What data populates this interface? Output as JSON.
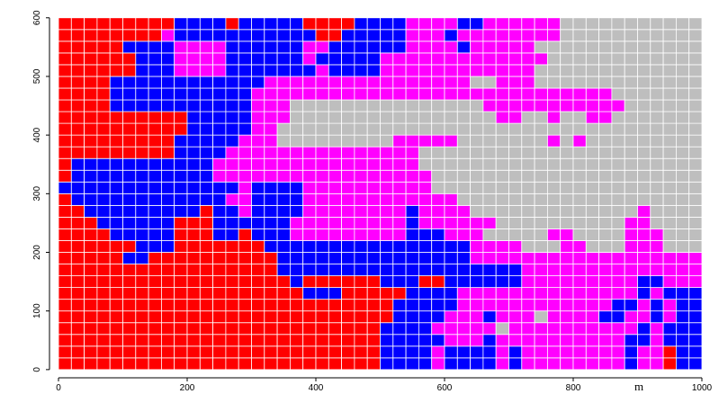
{
  "chart_data": {
    "type": "heatmap",
    "xbins": [
      0,
      20,
      40,
      60,
      80,
      100,
      120,
      140,
      160,
      180,
      200,
      220,
      240,
      260,
      280,
      300,
      320,
      340,
      360,
      380,
      400,
      420,
      440,
      460,
      480,
      500,
      520,
      540,
      560,
      580,
      600,
      620,
      640,
      660,
      680,
      700,
      720,
      740,
      760,
      780,
      800,
      820,
      840,
      860,
      880,
      900,
      920,
      940,
      960,
      980,
      1000
    ],
    "ybins": [
      0,
      20,
      40,
      60,
      80,
      100,
      120,
      140,
      160,
      180,
      200,
      220,
      240,
      260,
      280,
      300,
      320,
      340,
      360,
      380,
      400,
      420,
      440,
      460,
      480,
      500,
      520,
      540,
      560,
      580,
      600
    ],
    "palette": [
      "#ff0000",
      "#0000ff",
      "#ff00ff",
      "#bebebe"
    ],
    "z": [
      [
        0,
        0,
        0,
        0,
        0,
        0,
        0,
        0,
        0,
        0,
        0,
        0,
        0,
        0,
        0,
        0,
        0,
        0,
        0,
        0,
        0,
        0,
        0,
        0,
        0,
        1,
        1,
        1,
        1,
        2,
        1,
        1,
        1,
        1,
        2,
        1,
        2,
        2,
        2,
        2,
        2,
        2,
        2,
        2,
        1,
        2,
        2,
        0,
        1,
        1
      ],
      [
        0,
        0,
        0,
        0,
        0,
        0,
        0,
        0,
        0,
        0,
        0,
        0,
        0,
        0,
        0,
        0,
        0,
        0,
        0,
        0,
        0,
        0,
        0,
        0,
        0,
        1,
        1,
        1,
        1,
        2,
        1,
        1,
        1,
        1,
        2,
        1,
        2,
        2,
        2,
        2,
        2,
        2,
        2,
        2,
        1,
        2,
        2,
        0,
        1,
        1
      ],
      [
        0,
        0,
        0,
        0,
        0,
        0,
        0,
        0,
        0,
        0,
        0,
        0,
        0,
        0,
        0,
        0,
        0,
        0,
        0,
        0,
        0,
        0,
        0,
        0,
        0,
        1,
        1,
        1,
        1,
        1,
        2,
        2,
        2,
        1,
        2,
        2,
        2,
        2,
        2,
        2,
        2,
        2,
        2,
        2,
        1,
        1,
        2,
        1,
        1,
        1
      ],
      [
        0,
        0,
        0,
        0,
        0,
        0,
        0,
        0,
        0,
        0,
        0,
        0,
        0,
        0,
        0,
        0,
        0,
        0,
        0,
        0,
        0,
        0,
        0,
        0,
        0,
        1,
        1,
        1,
        1,
        2,
        2,
        2,
        2,
        2,
        3,
        2,
        2,
        2,
        2,
        2,
        2,
        2,
        2,
        2,
        2,
        1,
        2,
        1,
        1,
        1
      ],
      [
        0,
        0,
        0,
        0,
        0,
        0,
        0,
        0,
        0,
        0,
        0,
        0,
        0,
        0,
        0,
        0,
        0,
        0,
        0,
        0,
        0,
        0,
        0,
        0,
        0,
        0,
        1,
        1,
        1,
        1,
        2,
        2,
        2,
        1,
        2,
        2,
        2,
        3,
        2,
        2,
        2,
        2,
        1,
        1,
        2,
        2,
        1,
        2,
        1,
        1
      ],
      [
        0,
        0,
        0,
        0,
        0,
        0,
        0,
        0,
        0,
        0,
        0,
        0,
        0,
        0,
        0,
        0,
        0,
        0,
        0,
        0,
        0,
        0,
        0,
        0,
        0,
        0,
        1,
        1,
        1,
        1,
        1,
        2,
        2,
        2,
        2,
        2,
        2,
        2,
        2,
        2,
        2,
        2,
        2,
        1,
        1,
        2,
        1,
        2,
        1,
        1
      ],
      [
        0,
        0,
        0,
        0,
        0,
        0,
        0,
        0,
        0,
        0,
        0,
        0,
        0,
        0,
        0,
        0,
        0,
        0,
        0,
        1,
        1,
        1,
        0,
        0,
        0,
        0,
        0,
        1,
        1,
        1,
        1,
        2,
        2,
        2,
        2,
        2,
        2,
        2,
        2,
        2,
        2,
        2,
        2,
        2,
        2,
        1,
        2,
        1,
        1,
        1
      ],
      [
        0,
        0,
        0,
        0,
        0,
        0,
        0,
        0,
        0,
        0,
        0,
        0,
        0,
        0,
        0,
        0,
        0,
        0,
        1,
        0,
        0,
        0,
        0,
        0,
        0,
        1,
        1,
        1,
        0,
        0,
        1,
        1,
        1,
        1,
        1,
        1,
        2,
        2,
        2,
        2,
        2,
        2,
        2,
        2,
        2,
        1,
        1,
        2,
        2,
        2
      ],
      [
        0,
        0,
        0,
        0,
        0,
        0,
        0,
        0,
        0,
        0,
        0,
        0,
        0,
        0,
        0,
        0,
        0,
        1,
        1,
        1,
        1,
        1,
        1,
        1,
        1,
        1,
        1,
        1,
        1,
        1,
        1,
        1,
        1,
        1,
        1,
        1,
        2,
        2,
        2,
        2,
        2,
        2,
        2,
        2,
        2,
        2,
        2,
        2,
        2,
        2
      ],
      [
        0,
        0,
        0,
        0,
        0,
        1,
        1,
        0,
        0,
        0,
        0,
        0,
        0,
        0,
        0,
        0,
        0,
        1,
        1,
        1,
        1,
        1,
        1,
        1,
        1,
        1,
        1,
        1,
        1,
        1,
        1,
        1,
        2,
        2,
        2,
        2,
        2,
        2,
        2,
        2,
        2,
        2,
        2,
        2,
        2,
        2,
        2,
        2,
        2,
        2
      ],
      [
        0,
        0,
        0,
        0,
        0,
        0,
        1,
        1,
        1,
        0,
        0,
        0,
        0,
        0,
        0,
        0,
        1,
        1,
        1,
        1,
        1,
        1,
        1,
        1,
        1,
        1,
        1,
        1,
        1,
        1,
        1,
        1,
        2,
        2,
        2,
        2,
        3,
        3,
        3,
        2,
        2,
        3,
        3,
        3,
        2,
        2,
        2,
        3,
        3,
        3
      ],
      [
        0,
        0,
        0,
        0,
        1,
        1,
        1,
        1,
        1,
        0,
        0,
        0,
        1,
        1,
        0,
        1,
        1,
        1,
        2,
        2,
        2,
        2,
        2,
        2,
        2,
        2,
        2,
        1,
        1,
        1,
        2,
        2,
        2,
        3,
        3,
        3,
        3,
        3,
        2,
        2,
        3,
        3,
        3,
        3,
        2,
        2,
        2,
        3,
        3,
        3
      ],
      [
        0,
        0,
        0,
        1,
        1,
        1,
        1,
        1,
        1,
        0,
        0,
        0,
        1,
        1,
        1,
        1,
        1,
        1,
        2,
        2,
        2,
        2,
        2,
        2,
        2,
        2,
        2,
        1,
        2,
        2,
        2,
        2,
        2,
        2,
        3,
        3,
        3,
        3,
        3,
        3,
        3,
        3,
        3,
        3,
        2,
        2,
        3,
        3,
        3,
        3
      ],
      [
        0,
        0,
        1,
        1,
        1,
        1,
        1,
        1,
        1,
        1,
        1,
        0,
        1,
        1,
        2,
        1,
        1,
        1,
        1,
        2,
        2,
        2,
        2,
        2,
        2,
        2,
        2,
        1,
        2,
        2,
        2,
        2,
        3,
        3,
        3,
        3,
        3,
        3,
        3,
        3,
        3,
        3,
        3,
        3,
        3,
        2,
        3,
        3,
        3,
        3
      ],
      [
        0,
        1,
        1,
        1,
        1,
        1,
        1,
        1,
        1,
        1,
        1,
        1,
        1,
        2,
        2,
        1,
        1,
        1,
        1,
        2,
        2,
        2,
        2,
        2,
        2,
        2,
        2,
        2,
        2,
        2,
        2,
        3,
        3,
        3,
        3,
        3,
        3,
        3,
        3,
        3,
        3,
        3,
        3,
        3,
        3,
        3,
        3,
        3,
        3,
        3
      ],
      [
        1,
        1,
        1,
        1,
        1,
        1,
        1,
        1,
        1,
        1,
        1,
        1,
        1,
        1,
        2,
        1,
        1,
        1,
        1,
        2,
        2,
        2,
        2,
        2,
        2,
        2,
        2,
        2,
        2,
        3,
        3,
        3,
        3,
        3,
        3,
        3,
        3,
        3,
        3,
        3,
        3,
        3,
        3,
        3,
        3,
        3,
        3,
        3,
        3,
        3
      ],
      [
        0,
        1,
        1,
        1,
        1,
        1,
        1,
        1,
        1,
        1,
        1,
        1,
        2,
        2,
        2,
        2,
        2,
        2,
        2,
        2,
        2,
        2,
        2,
        2,
        2,
        2,
        2,
        2,
        2,
        3,
        3,
        3,
        3,
        3,
        3,
        3,
        3,
        3,
        3,
        3,
        3,
        3,
        3,
        3,
        3,
        3,
        3,
        3,
        3,
        3
      ],
      [
        0,
        1,
        1,
        1,
        1,
        1,
        1,
        1,
        1,
        1,
        1,
        1,
        2,
        2,
        2,
        2,
        2,
        2,
        2,
        2,
        2,
        2,
        2,
        2,
        2,
        2,
        2,
        2,
        3,
        3,
        3,
        3,
        3,
        3,
        3,
        3,
        3,
        3,
        3,
        3,
        3,
        3,
        3,
        3,
        3,
        3,
        3,
        3,
        3,
        3
      ],
      [
        0,
        0,
        0,
        0,
        0,
        0,
        0,
        0,
        0,
        1,
        1,
        1,
        1,
        2,
        2,
        2,
        2,
        2,
        2,
        2,
        2,
        2,
        2,
        2,
        2,
        2,
        2,
        2,
        3,
        3,
        3,
        3,
        3,
        3,
        3,
        3,
        3,
        3,
        3,
        3,
        3,
        3,
        3,
        3,
        3,
        3,
        3,
        3,
        3,
        3
      ],
      [
        0,
        0,
        0,
        0,
        0,
        0,
        0,
        0,
        0,
        1,
        1,
        1,
        1,
        1,
        2,
        2,
        2,
        3,
        3,
        3,
        3,
        3,
        3,
        3,
        3,
        3,
        2,
        2,
        2,
        2,
        2,
        3,
        3,
        3,
        3,
        3,
        3,
        3,
        2,
        3,
        2,
        3,
        3,
        3,
        3,
        3,
        3,
        3,
        3,
        3
      ],
      [
        0,
        0,
        0,
        0,
        0,
        0,
        0,
        0,
        0,
        0,
        1,
        1,
        1,
        1,
        1,
        2,
        2,
        3,
        3,
        3,
        3,
        3,
        3,
        3,
        3,
        3,
        3,
        3,
        3,
        3,
        3,
        3,
        3,
        3,
        3,
        3,
        3,
        3,
        3,
        3,
        3,
        3,
        3,
        3,
        3,
        3,
        3,
        3,
        3,
        3
      ],
      [
        0,
        0,
        0,
        0,
        0,
        0,
        0,
        0,
        0,
        0,
        1,
        1,
        1,
        1,
        1,
        2,
        2,
        2,
        3,
        3,
        3,
        3,
        3,
        3,
        3,
        3,
        3,
        3,
        3,
        3,
        3,
        3,
        3,
        3,
        2,
        2,
        3,
        3,
        2,
        3,
        3,
        2,
        2,
        3,
        3,
        3,
        3,
        3,
        3,
        3
      ],
      [
        0,
        0,
        0,
        0,
        1,
        1,
        1,
        1,
        1,
        1,
        1,
        1,
        1,
        1,
        1,
        2,
        2,
        2,
        3,
        3,
        3,
        3,
        3,
        3,
        3,
        3,
        3,
        3,
        3,
        3,
        3,
        3,
        3,
        2,
        2,
        2,
        2,
        2,
        2,
        2,
        2,
        2,
        2,
        2,
        3,
        3,
        3,
        3,
        3,
        3
      ],
      [
        0,
        0,
        0,
        0,
        1,
        1,
        1,
        1,
        1,
        1,
        1,
        1,
        1,
        1,
        1,
        2,
        2,
        2,
        2,
        2,
        2,
        2,
        2,
        2,
        2,
        2,
        2,
        2,
        2,
        2,
        2,
        2,
        2,
        2,
        2,
        2,
        2,
        2,
        2,
        2,
        2,
        2,
        2,
        3,
        3,
        3,
        3,
        3,
        3,
        3
      ],
      [
        0,
        0,
        0,
        0,
        1,
        1,
        1,
        1,
        1,
        1,
        1,
        1,
        1,
        1,
        1,
        1,
        2,
        2,
        2,
        2,
        2,
        2,
        2,
        2,
        2,
        2,
        2,
        2,
        2,
        2,
        2,
        2,
        3,
        3,
        2,
        2,
        2,
        3,
        3,
        3,
        3,
        3,
        3,
        3,
        3,
        3,
        3,
        3,
        3,
        3
      ],
      [
        0,
        0,
        0,
        0,
        0,
        0,
        1,
        1,
        1,
        2,
        2,
        2,
        2,
        1,
        1,
        1,
        1,
        1,
        1,
        1,
        2,
        1,
        1,
        1,
        1,
        2,
        2,
        2,
        2,
        2,
        2,
        2,
        2,
        2,
        2,
        2,
        2,
        3,
        3,
        3,
        3,
        3,
        3,
        3,
        3,
        3,
        3,
        3,
        3,
        3
      ],
      [
        0,
        0,
        0,
        0,
        0,
        0,
        1,
        1,
        1,
        2,
        2,
        2,
        2,
        1,
        1,
        1,
        1,
        1,
        1,
        2,
        1,
        1,
        1,
        1,
        1,
        2,
        2,
        2,
        2,
        2,
        2,
        2,
        2,
        2,
        2,
        2,
        2,
        2,
        3,
        3,
        3,
        3,
        3,
        3,
        3,
        3,
        3,
        3,
        3,
        3
      ],
      [
        0,
        0,
        0,
        0,
        0,
        1,
        1,
        1,
        1,
        2,
        2,
        2,
        2,
        1,
        1,
        1,
        1,
        1,
        1,
        2,
        2,
        1,
        1,
        1,
        1,
        1,
        1,
        2,
        2,
        2,
        2,
        1,
        2,
        2,
        2,
        2,
        2,
        3,
        3,
        3,
        3,
        3,
        3,
        3,
        3,
        3,
        3,
        3,
        3,
        3
      ],
      [
        0,
        0,
        0,
        0,
        0,
        0,
        0,
        0,
        2,
        1,
        1,
        1,
        1,
        1,
        1,
        1,
        1,
        1,
        1,
        1,
        0,
        0,
        1,
        1,
        1,
        1,
        1,
        2,
        2,
        2,
        1,
        2,
        2,
        2,
        2,
        2,
        2,
        2,
        2,
        3,
        3,
        3,
        3,
        3,
        3,
        3,
        3,
        3,
        3,
        3
      ],
      [
        0,
        0,
        0,
        0,
        0,
        0,
        0,
        0,
        0,
        1,
        1,
        1,
        1,
        0,
        1,
        1,
        1,
        1,
        1,
        0,
        0,
        0,
        0,
        1,
        1,
        1,
        1,
        2,
        2,
        2,
        2,
        1,
        1,
        2,
        2,
        2,
        2,
        2,
        2,
        3,
        3,
        3,
        3,
        3,
        3,
        3,
        3,
        3,
        3,
        3
      ]
    ],
    "xlim": [
      -14,
      1021
    ],
    "ylim": [
      -14,
      615
    ],
    "xticks": [
      0,
      200,
      400,
      600,
      800,
      1000
    ],
    "yticks": [
      0,
      100,
      200,
      300,
      400,
      500,
      600
    ],
    "annotation": "m",
    "annotation_color": "#e00000"
  }
}
